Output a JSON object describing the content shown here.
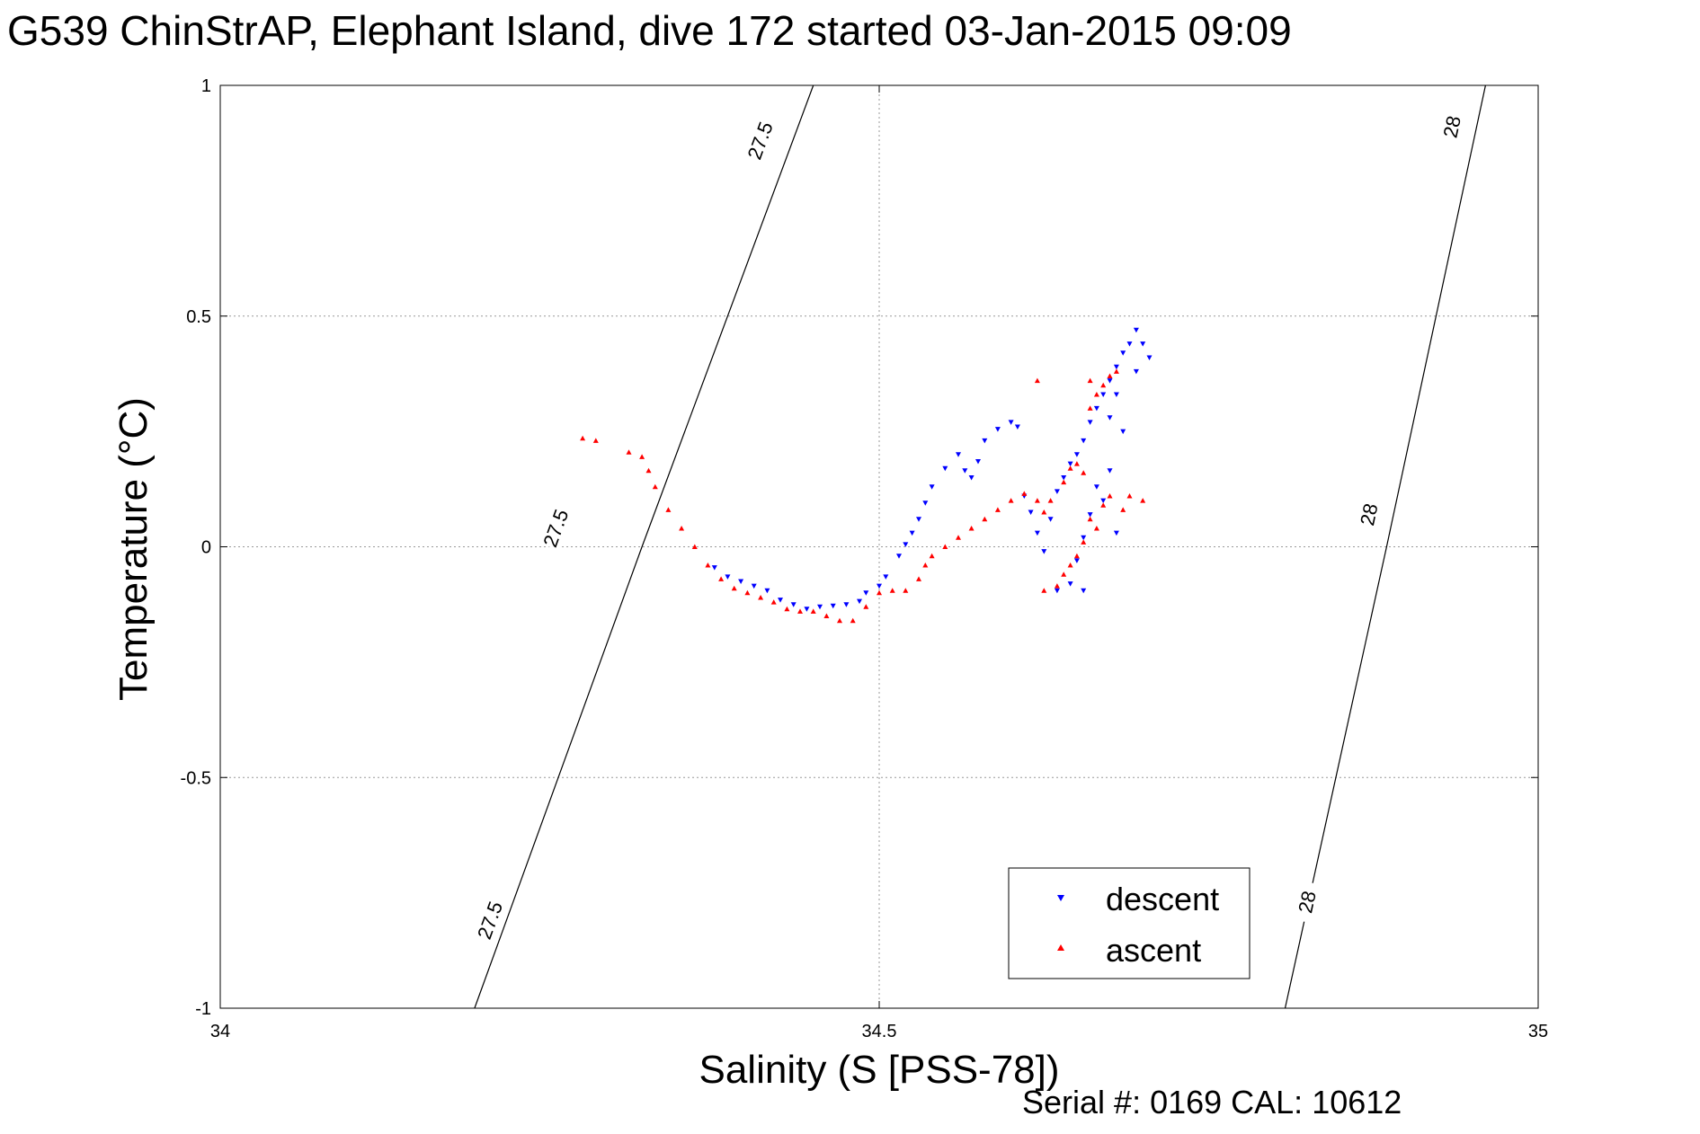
{
  "chart_data": {
    "type": "scatter",
    "title": "G539 ChinStrAP, Elephant Island, dive 172 started 03-Jan-2015 09:09",
    "xlabel": "Salinity (S [PSS-78])",
    "ylabel": "Temperature (°C)",
    "footer": "Serial #: 0169 CAL: 10612",
    "xlim": [
      34,
      35
    ],
    "ylim": [
      -1,
      1
    ],
    "xticks": [
      {
        "value": 34,
        "label": "34"
      },
      {
        "value": 34.5,
        "label": "34.5"
      },
      {
        "value": 35,
        "label": "35"
      }
    ],
    "yticks": [
      {
        "value": -1,
        "label": "-1"
      },
      {
        "value": -0.5,
        "label": "-0.5"
      },
      {
        "value": 0,
        "label": "0"
      },
      {
        "value": 0.5,
        "label": "0.5"
      },
      {
        "value": 1,
        "label": "1"
      }
    ],
    "grid": true,
    "legend_position": "bottom-right",
    "isopycnals": [
      {
        "label": "27.5",
        "points": [
          [
            34.193,
            -1.0
          ],
          [
            34.32,
            0.0
          ],
          [
            34.45,
            1.0
          ]
        ],
        "label_at": [
          [
            34.41,
            0.88
          ],
          [
            34.255,
            0.04
          ],
          [
            34.205,
            -0.81
          ]
        ]
      },
      {
        "label": "28",
        "points": [
          [
            34.808,
            -1.0
          ],
          [
            34.885,
            0.0
          ],
          [
            34.96,
            1.0
          ]
        ],
        "label_at": [
          [
            34.935,
            0.91
          ],
          [
            34.872,
            0.07
          ],
          [
            34.825,
            -0.77
          ]
        ]
      }
    ],
    "series": [
      {
        "name": "descent",
        "color": "#0000ff",
        "marker": "triangle-down",
        "points": [
          [
            34.375,
            -0.045
          ],
          [
            34.385,
            -0.065
          ],
          [
            34.395,
            -0.075
          ],
          [
            34.405,
            -0.085
          ],
          [
            34.415,
            -0.095
          ],
          [
            34.425,
            -0.115
          ],
          [
            34.435,
            -0.125
          ],
          [
            34.445,
            -0.135
          ],
          [
            34.455,
            -0.13
          ],
          [
            34.465,
            -0.128
          ],
          [
            34.475,
            -0.125
          ],
          [
            34.485,
            -0.118
          ],
          [
            34.49,
            -0.1
          ],
          [
            34.5,
            -0.085
          ],
          [
            34.505,
            -0.065
          ],
          [
            34.515,
            -0.02
          ],
          [
            34.52,
            0.005
          ],
          [
            34.525,
            0.03
          ],
          [
            34.53,
            0.06
          ],
          [
            34.535,
            0.095
          ],
          [
            34.54,
            0.13
          ],
          [
            34.55,
            0.17
          ],
          [
            34.56,
            0.2
          ],
          [
            34.565,
            0.165
          ],
          [
            34.57,
            0.15
          ],
          [
            34.575,
            0.185
          ],
          [
            34.58,
            0.23
          ],
          [
            34.59,
            0.255
          ],
          [
            34.6,
            0.27
          ],
          [
            34.605,
            0.26
          ],
          [
            34.61,
            0.11
          ],
          [
            34.615,
            0.075
          ],
          [
            34.62,
            0.03
          ],
          [
            34.625,
            -0.01
          ],
          [
            34.63,
            0.06
          ],
          [
            34.635,
            0.12
          ],
          [
            34.64,
            0.15
          ],
          [
            34.645,
            0.18
          ],
          [
            34.65,
            0.2
          ],
          [
            34.655,
            0.23
          ],
          [
            34.66,
            0.27
          ],
          [
            34.665,
            0.3
          ],
          [
            34.67,
            0.33
          ],
          [
            34.675,
            0.36
          ],
          [
            34.68,
            0.39
          ],
          [
            34.685,
            0.42
          ],
          [
            34.69,
            0.44
          ],
          [
            34.695,
            0.47
          ],
          [
            34.7,
            0.44
          ],
          [
            34.705,
            0.41
          ],
          [
            34.695,
            0.38
          ],
          [
            34.68,
            0.33
          ],
          [
            34.675,
            0.28
          ],
          [
            34.685,
            0.25
          ],
          [
            34.675,
            0.165
          ],
          [
            34.665,
            0.13
          ],
          [
            34.66,
            0.07
          ],
          [
            34.655,
            0.02
          ],
          [
            34.65,
            -0.03
          ],
          [
            34.645,
            -0.08
          ],
          [
            34.635,
            -0.095
          ],
          [
            34.655,
            -0.095
          ],
          [
            34.67,
            0.1
          ],
          [
            34.68,
            0.03
          ]
        ]
      },
      {
        "name": "ascent",
        "color": "#ff0000",
        "marker": "triangle-up",
        "points": [
          [
            34.275,
            0.235
          ],
          [
            34.285,
            0.23
          ],
          [
            34.31,
            0.205
          ],
          [
            34.32,
            0.195
          ],
          [
            34.325,
            0.165
          ],
          [
            34.33,
            0.13
          ],
          [
            34.34,
            0.08
          ],
          [
            34.35,
            0.04
          ],
          [
            34.36,
            0.0
          ],
          [
            34.37,
            -0.04
          ],
          [
            34.38,
            -0.07
          ],
          [
            34.39,
            -0.09
          ],
          [
            34.4,
            -0.1
          ],
          [
            34.41,
            -0.11
          ],
          [
            34.42,
            -0.12
          ],
          [
            34.43,
            -0.135
          ],
          [
            34.44,
            -0.14
          ],
          [
            34.45,
            -0.14
          ],
          [
            34.46,
            -0.15
          ],
          [
            34.47,
            -0.16
          ],
          [
            34.48,
            -0.16
          ],
          [
            34.49,
            -0.13
          ],
          [
            34.5,
            -0.1
          ],
          [
            34.51,
            -0.095
          ],
          [
            34.52,
            -0.095
          ],
          [
            34.53,
            -0.07
          ],
          [
            34.535,
            -0.04
          ],
          [
            34.54,
            -0.02
          ],
          [
            34.55,
            0.0
          ],
          [
            34.56,
            0.02
          ],
          [
            34.57,
            0.04
          ],
          [
            34.58,
            0.06
          ],
          [
            34.59,
            0.08
          ],
          [
            34.6,
            0.1
          ],
          [
            34.61,
            0.115
          ],
          [
            34.62,
            0.1
          ],
          [
            34.625,
            0.075
          ],
          [
            34.63,
            0.1
          ],
          [
            34.64,
            0.14
          ],
          [
            34.645,
            0.17
          ],
          [
            34.65,
            0.18
          ],
          [
            34.655,
            0.16
          ],
          [
            34.66,
            0.06
          ],
          [
            34.665,
            0.04
          ],
          [
            34.655,
            0.01
          ],
          [
            34.65,
            -0.02
          ],
          [
            34.645,
            -0.04
          ],
          [
            34.64,
            -0.06
          ],
          [
            34.635,
            -0.085
          ],
          [
            34.625,
            -0.095
          ],
          [
            34.62,
            0.36
          ],
          [
            34.66,
            0.3
          ],
          [
            34.665,
            0.33
          ],
          [
            34.67,
            0.35
          ],
          [
            34.675,
            0.37
          ],
          [
            34.68,
            0.38
          ],
          [
            34.66,
            0.36
          ],
          [
            34.675,
            0.11
          ],
          [
            34.69,
            0.11
          ],
          [
            34.7,
            0.1
          ],
          [
            34.685,
            0.08
          ],
          [
            34.67,
            0.09
          ]
        ]
      }
    ]
  }
}
